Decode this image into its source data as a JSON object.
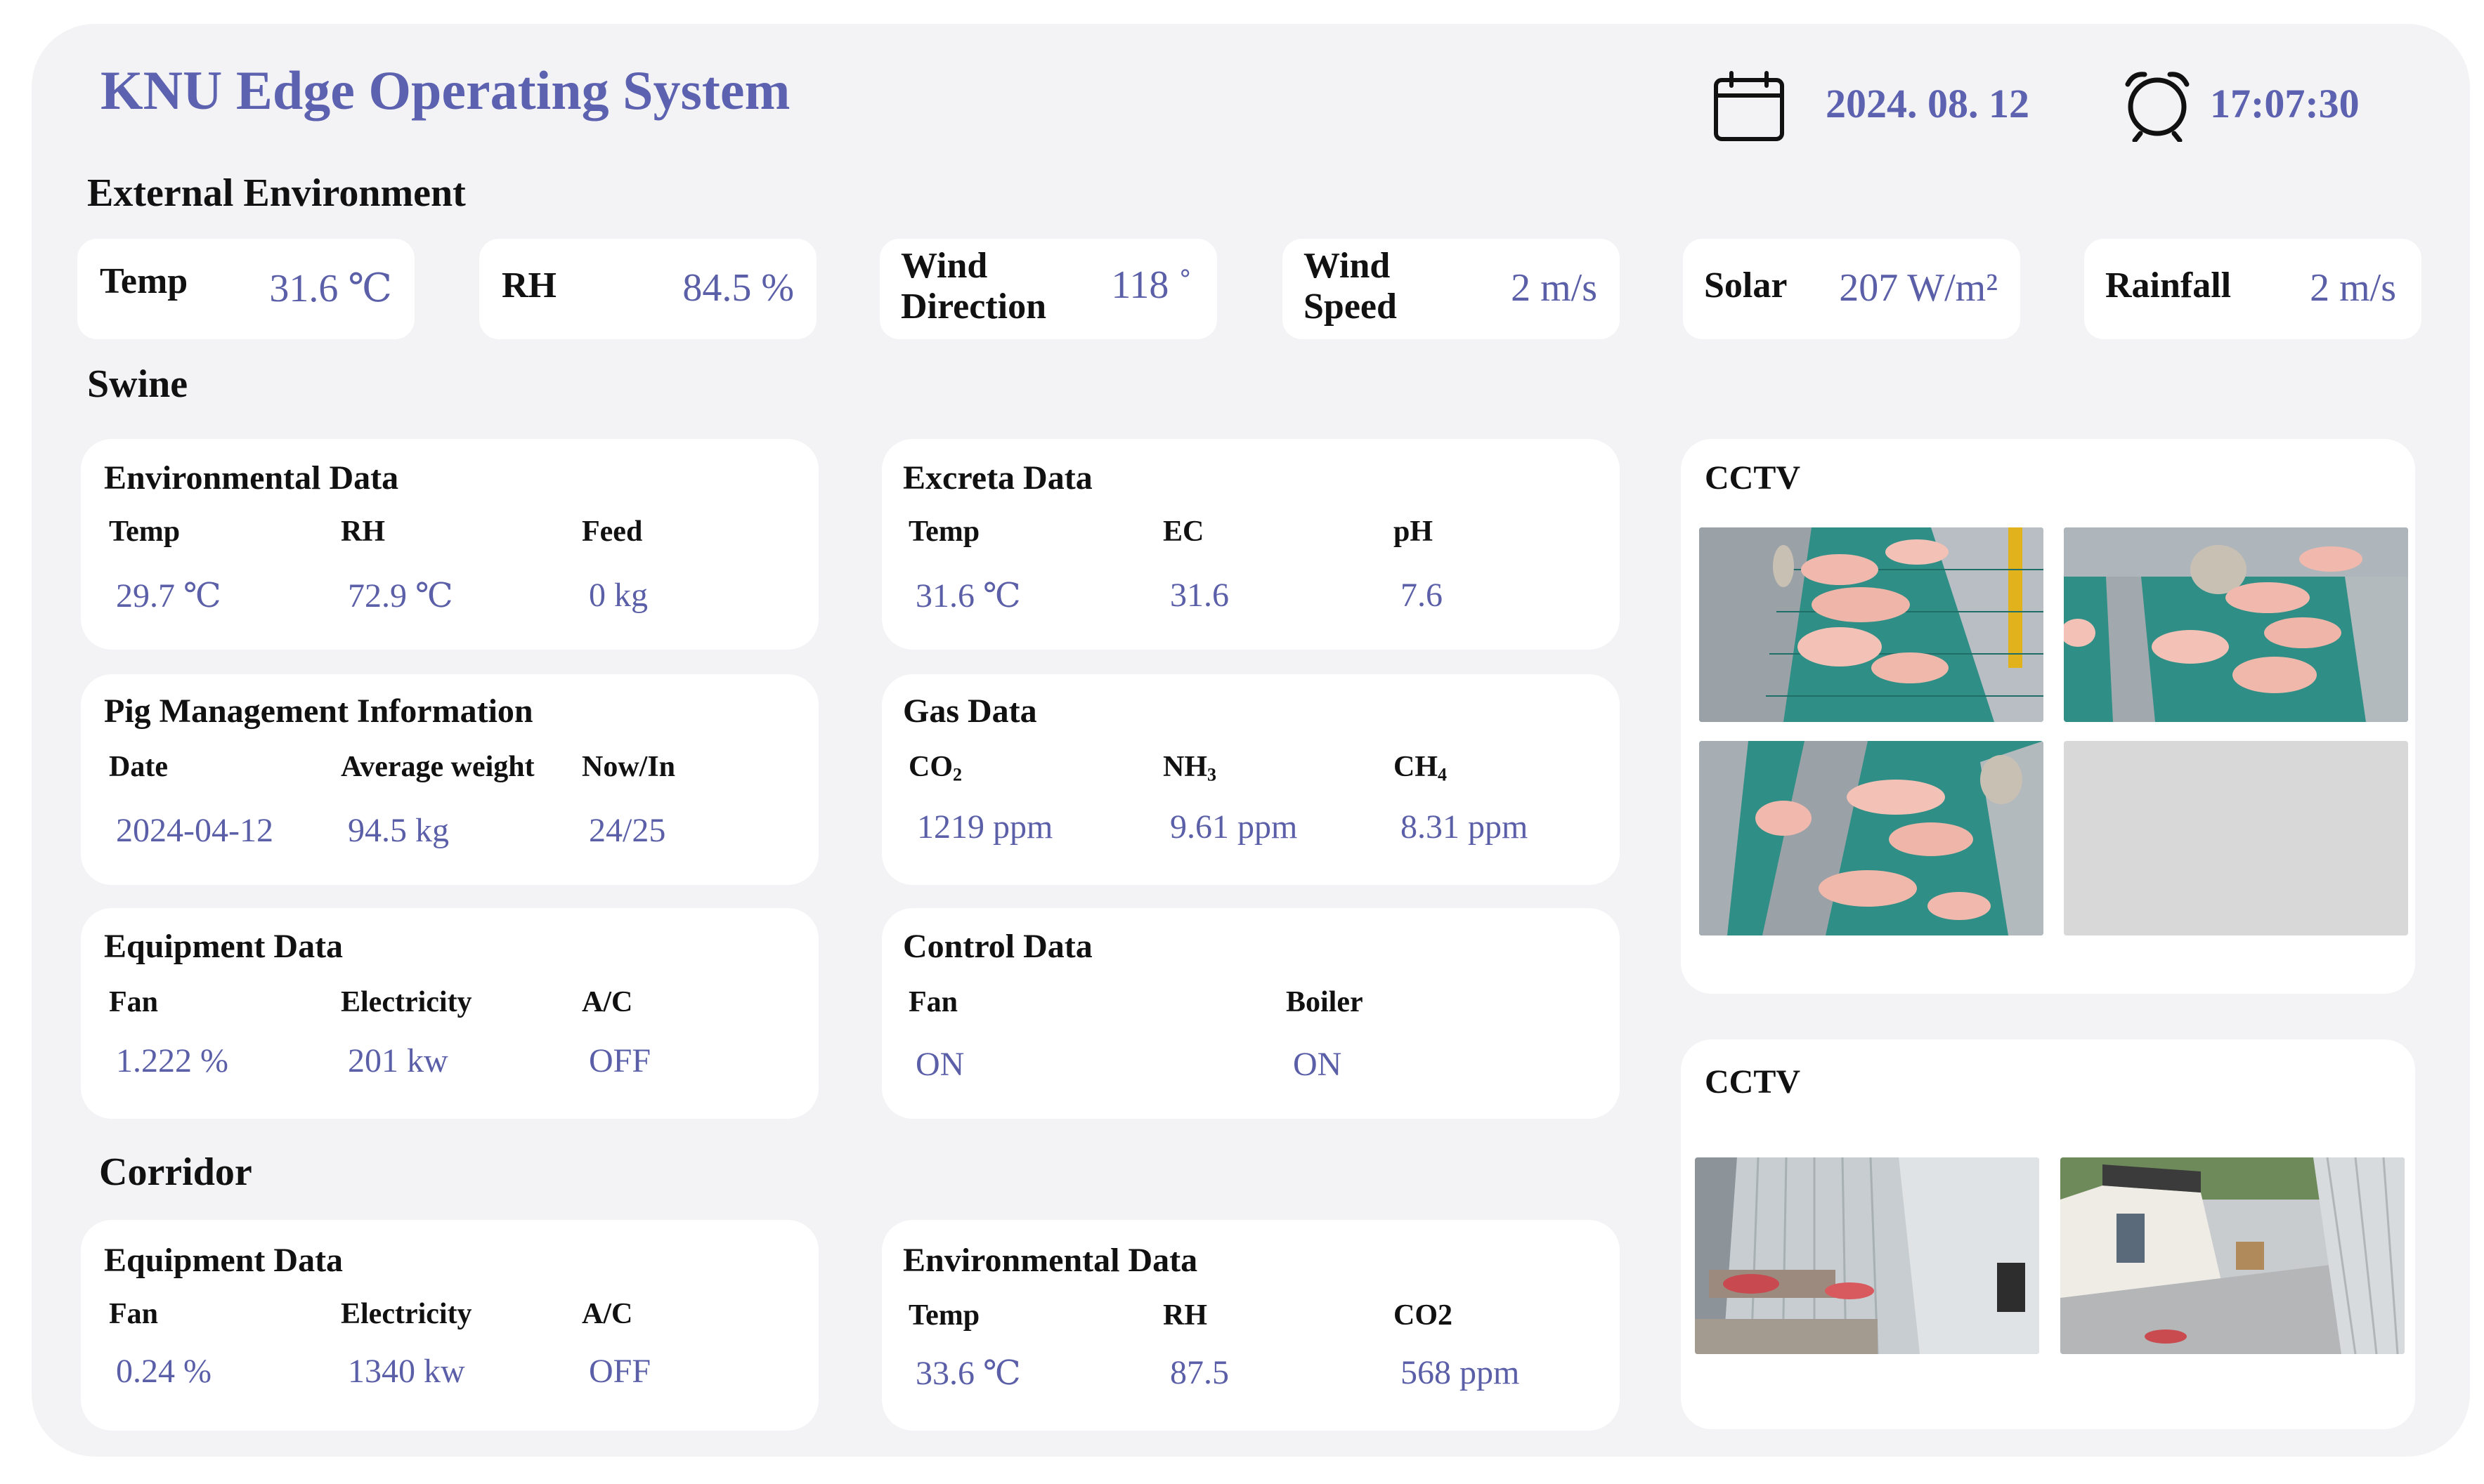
{
  "app": {
    "title": "KNU Edge Operating System"
  },
  "header": {
    "date": "2024. 08. 12",
    "time": "17:07:30",
    "date_icon": "calendar-icon",
    "time_icon": "alarm-clock-icon"
  },
  "external": {
    "title": "External Environment",
    "items": [
      {
        "label": "Temp",
        "value": "31.6 ℃"
      },
      {
        "label": "RH",
        "value": "84.5 %"
      },
      {
        "label": "Wind Direction",
        "label1": "Wind",
        "label2": "Direction",
        "value": "118 ˚"
      },
      {
        "label": "Wind Speed",
        "label1": "Wind",
        "label2": "Speed",
        "value": "2 m/s"
      },
      {
        "label": "Solar",
        "value": "207 W/m²"
      },
      {
        "label": "Rainfall",
        "value": "2 m/s"
      }
    ]
  },
  "swine": {
    "title": "Swine",
    "environmental": {
      "title": "Environmental Data",
      "labels": [
        "Temp",
        "RH",
        "Feed"
      ],
      "values": [
        "29.7 ℃",
        "72.9 ℃",
        "0 kg"
      ]
    },
    "excreta": {
      "title": "Excreta Data",
      "labels": [
        "Temp",
        "EC",
        "pH"
      ],
      "values": [
        "31.6 ℃",
        "31.6",
        "7.6"
      ]
    },
    "pig_management": {
      "title": "Pig Management Information",
      "labels": [
        "Date",
        "Average weight",
        "Now/In"
      ],
      "values": [
        "2024-04-12",
        "94.5 kg",
        "24/25"
      ]
    },
    "gas": {
      "title": "Gas Data",
      "labels": [
        {
          "base": "CO",
          "sub": "2"
        },
        {
          "base": "NH",
          "sub": "3"
        },
        {
          "base": "CH",
          "sub": "4"
        }
      ],
      "values": [
        "1219 ppm",
        "9.61 ppm",
        "8.31 ppm"
      ]
    },
    "equipment": {
      "title": "Equipment Data",
      "labels": [
        "Fan",
        "Electricity",
        "A/C"
      ],
      "values": [
        "1.222 %",
        "201 kw",
        "OFF"
      ]
    },
    "control": {
      "title": "Control Data",
      "labels": [
        "Fan",
        "Boiler"
      ],
      "values": [
        "ON",
        "ON"
      ]
    },
    "cctv": {
      "title": "CCTV"
    }
  },
  "corridor": {
    "title": "Corridor",
    "equipment": {
      "title": "Equipment Data",
      "labels": [
        "Fan",
        "Electricity",
        "A/C"
      ],
      "values": [
        "0.24 %",
        "1340 kw",
        "OFF"
      ]
    },
    "environmental": {
      "title": "Environmental Data",
      "labels": [
        "Temp",
        "RH",
        "CO2"
      ],
      "values": [
        "33.6 ℃",
        "87.5",
        "568 ppm"
      ]
    },
    "cctv": {
      "title": "CCTV"
    }
  },
  "colors": {
    "accent": "#5d62b0",
    "value": "#5a5fa8",
    "panel_bg": "#f3f3f5",
    "card_bg": "#ffffff",
    "pen_floor": "#2f8f86",
    "pig": "#f1b9ad",
    "wall": "#9aa2a8",
    "placeholder": "#d8d8d8"
  }
}
